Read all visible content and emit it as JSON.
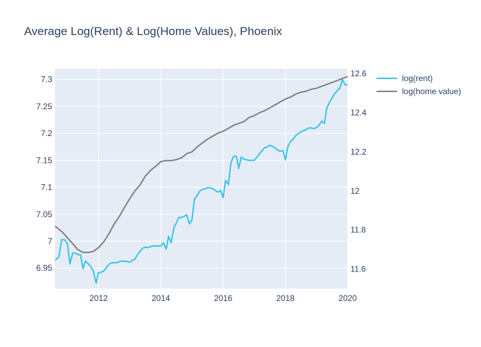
{
  "chart_data": {
    "type": "line",
    "title": "Average Log(Rent) & Log(Home Values), Phoenix",
    "xlabel": "",
    "ylabel": "",
    "xlim": [
      2010.6,
      2020.0
    ],
    "x_ticks": [
      2012,
      2014,
      2016,
      2018,
      2020
    ],
    "y_left": {
      "range": [
        6.912,
        7.32
      ],
      "ticks": [
        6.95,
        7,
        7.05,
        7.1,
        7.15,
        7.2,
        7.25,
        7.3
      ]
    },
    "y_right": {
      "range": [
        11.5,
        12.625
      ],
      "ticks": [
        11.6,
        11.8,
        12,
        12.2,
        12.4,
        12.6
      ]
    },
    "grid": true,
    "legend": "right",
    "series": [
      {
        "name": "log(rent)",
        "axis": "left",
        "color": "#37c3e9",
        "x": [
          2010.6,
          2010.72,
          2010.82,
          2010.92,
          2011.0,
          2011.08,
          2011.17,
          2011.25,
          2011.33,
          2011.42,
          2011.5,
          2011.58,
          2011.67,
          2011.75,
          2011.83,
          2011.92,
          2012.0,
          2012.08,
          2012.17,
          2012.33,
          2012.42,
          2012.5,
          2012.58,
          2012.67,
          2012.75,
          2012.83,
          2013.0,
          2013.17,
          2013.25,
          2013.33,
          2013.42,
          2013.5,
          2013.58,
          2013.67,
          2013.75,
          2013.83,
          2013.92,
          2014.0,
          2014.08,
          2014.17,
          2014.25,
          2014.33,
          2014.42,
          2014.5,
          2014.58,
          2014.67,
          2014.75,
          2014.83,
          2014.92,
          2015.0,
          2015.08,
          2015.17,
          2015.25,
          2015.33,
          2015.42,
          2015.5,
          2015.58,
          2015.67,
          2015.75,
          2015.83,
          2015.92,
          2016.0,
          2016.08,
          2016.17,
          2016.25,
          2016.33,
          2016.42,
          2016.5,
          2016.58,
          2016.67,
          2016.75,
          2016.83,
          2016.92,
          2017.0,
          2017.17,
          2017.25,
          2017.33,
          2017.42,
          2017.5,
          2017.58,
          2017.67,
          2017.75,
          2017.83,
          2017.92,
          2018.0,
          2018.08,
          2018.17,
          2018.25,
          2018.33,
          2018.42,
          2018.5,
          2018.58,
          2018.67,
          2018.75,
          2018.83,
          2018.92,
          2019.0,
          2019.08,
          2019.17,
          2019.25,
          2019.33,
          2019.42,
          2019.5,
          2019.58,
          2019.67,
          2019.75,
          2019.83,
          2019.92,
          2020.0
        ],
        "y": [
          6.965,
          6.97,
          7.003,
          7.002,
          6.995,
          6.958,
          6.978,
          6.978,
          6.975,
          6.975,
          6.949,
          6.963,
          6.958,
          6.953,
          6.945,
          6.922,
          6.942,
          6.942,
          6.945,
          6.957,
          6.96,
          6.96,
          6.96,
          6.962,
          6.963,
          6.963,
          6.961,
          6.967,
          6.975,
          6.981,
          6.987,
          6.989,
          6.988,
          6.99,
          6.991,
          6.991,
          6.991,
          6.991,
          6.997,
          6.985,
          7.009,
          6.997,
          7.025,
          7.034,
          7.044,
          7.044,
          7.046,
          7.049,
          7.032,
          7.04,
          7.078,
          7.085,
          7.093,
          7.096,
          7.097,
          7.099,
          7.099,
          7.097,
          7.094,
          7.091,
          7.094,
          7.081,
          7.113,
          7.105,
          7.145,
          7.157,
          7.158,
          7.135,
          7.156,
          7.152,
          7.151,
          7.15,
          7.15,
          7.15,
          7.162,
          7.168,
          7.173,
          7.175,
          7.178,
          7.176,
          7.173,
          7.169,
          7.167,
          7.168,
          7.151,
          7.176,
          7.185,
          7.189,
          7.196,
          7.2,
          7.203,
          7.205,
          7.207,
          7.21,
          7.21,
          7.209,
          7.211,
          7.215,
          7.223,
          7.218,
          7.247,
          7.258,
          7.266,
          7.274,
          7.279,
          7.284,
          7.3,
          7.29,
          7.29
        ]
      },
      {
        "name": "log(home value)",
        "axis": "right",
        "color": "#7f7f7f",
        "x": [
          2010.6,
          2010.83,
          2011.0,
          2011.17,
          2011.33,
          2011.5,
          2011.67,
          2011.83,
          2012.0,
          2012.17,
          2012.33,
          2012.5,
          2012.67,
          2012.83,
          2013.0,
          2013.17,
          2013.33,
          2013.5,
          2013.67,
          2013.83,
          2014.0,
          2014.17,
          2014.33,
          2014.5,
          2014.67,
          2014.83,
          2015.0,
          2015.17,
          2015.33,
          2015.5,
          2015.67,
          2015.83,
          2016.0,
          2016.17,
          2016.33,
          2016.5,
          2016.67,
          2016.83,
          2017.0,
          2017.17,
          2017.33,
          2017.5,
          2017.67,
          2017.83,
          2018.0,
          2018.17,
          2018.33,
          2018.5,
          2018.67,
          2018.83,
          2019.0,
          2019.17,
          2019.33,
          2019.5,
          2019.67,
          2019.83,
          2020.0
        ],
        "y": [
          11.82,
          11.79,
          11.76,
          11.73,
          11.7,
          11.685,
          11.685,
          11.69,
          11.71,
          11.74,
          11.78,
          11.83,
          11.87,
          11.915,
          11.96,
          12.0,
          12.03,
          12.075,
          12.105,
          12.125,
          12.15,
          12.155,
          12.155,
          12.16,
          12.17,
          12.19,
          12.2,
          12.225,
          12.245,
          12.265,
          12.28,
          12.295,
          12.305,
          12.32,
          12.335,
          12.345,
          12.355,
          12.375,
          12.385,
          12.4,
          12.41,
          12.425,
          12.44,
          12.455,
          12.47,
          12.48,
          12.495,
          12.505,
          12.51,
          12.52,
          12.525,
          12.535,
          12.545,
          12.555,
          12.565,
          12.575,
          12.585
        ]
      }
    ]
  }
}
